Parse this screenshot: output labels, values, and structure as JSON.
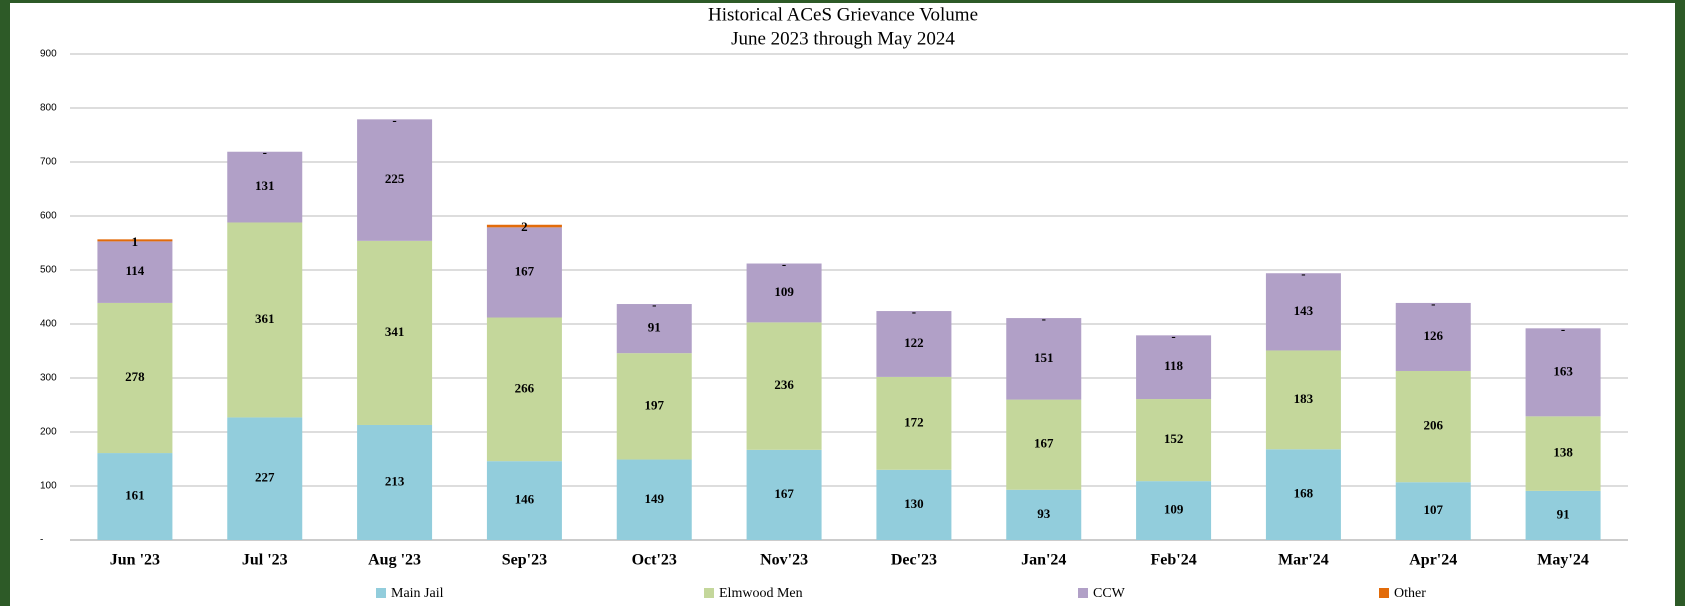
{
  "chart_data": {
    "type": "stacked_bar",
    "title": "Historical ACeS Grievance Volume",
    "subtitle": "June 2023  through May 2024",
    "categories": [
      "Jun '23",
      "Jul '23",
      "Aug '23",
      "Sep'23",
      "Oct'23",
      "Nov'23",
      "Dec'23",
      "Jan'24",
      "Feb'24",
      "Mar'24",
      "Apr'24",
      "May'24"
    ],
    "series": [
      {
        "name": "Main Jail",
        "color": "#92cddc",
        "values": [
          161,
          227,
          213,
          146,
          149,
          167,
          130,
          93,
          109,
          168,
          107,
          91
        ]
      },
      {
        "name": "Elmwood Men",
        "color": "#c4d79b",
        "values": [
          278,
          361,
          341,
          266,
          197,
          236,
          172,
          167,
          152,
          183,
          206,
          138
        ]
      },
      {
        "name": "CCW",
        "color": "#b1a0c7",
        "values": [
          114,
          131,
          225,
          167,
          91,
          109,
          122,
          151,
          118,
          143,
          126,
          163
        ]
      },
      {
        "name": "Other",
        "color": "#e26b0a",
        "values": [
          1,
          0,
          0,
          2,
          0,
          0,
          0,
          0,
          0,
          0,
          0,
          0
        ],
        "value_labels": [
          "1",
          "-",
          "-",
          "2",
          "-",
          "-",
          "-",
          "-",
          "-",
          "-",
          "-",
          "-"
        ]
      }
    ],
    "ylim": [
      0,
      900
    ],
    "yticks": [
      {
        "value": 0,
        "label": "-"
      },
      100,
      200,
      300,
      400,
      500,
      600,
      700,
      800,
      900
    ],
    "grid": true,
    "legend": "bottom"
  }
}
